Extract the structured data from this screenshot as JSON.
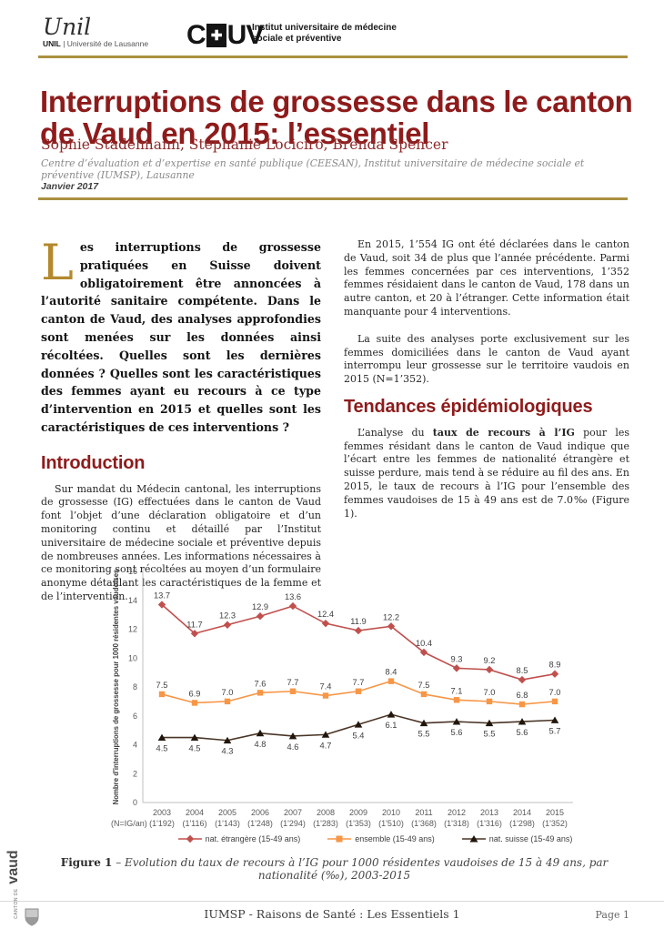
{
  "header": {
    "unil_script": "Unil",
    "unil_acronym": "UNIL",
    "unil_sub": " | Université de Lausanne",
    "chuv_c": "C",
    "chuv_cross": "✚",
    "chuv_uv": "UV",
    "institute_line1": "Institut universitaire de médecine",
    "institute_line2": "sociale et préventive"
  },
  "title": "Interruptions de grossesse dans le canton de Vaud en 2015: l’essentiel",
  "authors": "Sophie Stadelmann, Stéphanie Lociciro, Brenda Spencer",
  "affiliation": "Centre d’évaluation et d’expertise en santé publique (CEESAN), Institut universitaire de médecine sociale et préventive (IUMSP), Lausanne",
  "date": "Janvier 2017",
  "lead": {
    "dropcap": "L",
    "text": "es interruptions de grossesse pratiquées en Suisse doivent obligatoirement être annoncées à l’autorité sanitaire compétente. Dans le canton de Vaud, des analyses approfondies sont menées sur les données ainsi récoltées. Quelles sont les dernières données ? Quelles sont les caractéristiques des femmes ayant eu recours à ce type d’intervention en 2015 et quelles sont les caractéristiques de ces interventions ?"
  },
  "sections": {
    "introduction": {
      "heading": "Introduction",
      "body": "Sur mandat du Médecin cantonal, les interruptions de grossesse (IG) effectuées dans le canton de Vaud font l’objet d’une déclaration obligatoire et d’un monitoring continu et détaillé par l’Institut universitaire de médecine sociale et préventive depuis de nombreuses années. Les informations nécessaires à ce monitoring sont récoltées au moyen d’un formulaire anonyme détaillant les caractéristiques de la femme et de l’intervention."
    },
    "right_para1": "En 2015, 1’554 IG ont été déclarées dans le canton de Vaud, soit 34 de plus que l’année précédente. Parmi les femmes concernées par ces interventions, 1’352 femmes résidaient dans le canton de Vaud, 178 dans un autre canton, et 20 à l’étranger. Cette information était manquante pour 4 interventions.",
    "right_para2": "La suite des analyses porte exclusivement sur les femmes domiciliées dans le canton de Vaud ayant interrompu leur grossesse sur le territoire vaudois en 2015 (N=1’352).",
    "tendances": {
      "heading": "Tendances épidémiologiques",
      "body_prefix": "L’analyse du ",
      "body_bold": "taux de recours à l’IG",
      "body_suffix": " pour les femmes résidant dans le canton de Vaud indique que l’écart entre les femmes de nationalité étrangère et suisse perdure, mais tend à se réduire au fil des ans. En 2015, le taux de recours à l’IG pour l’ensemble des femmes vaudoises de 15 à 49 ans est de 7.0‰ (Figure 1)."
    }
  },
  "chart_data": {
    "type": "line",
    "ylabel": "Nombre d'interruptions de grossesse pour 1000 résidentes vaudoises",
    "ylim": [
      0,
      16
    ],
    "ytick_step": 2,
    "grid": false,
    "legend_position": "bottom",
    "x_axis_note": "(N=IG/an)",
    "categories": [
      "2003",
      "2004",
      "2005",
      "2006",
      "2007",
      "2008",
      "2009",
      "2010",
      "2011",
      "2012",
      "2013",
      "2014",
      "2015"
    ],
    "n_labels": [
      "(1'192)",
      "(1'116)",
      "(1'143)",
      "(1'248)",
      "(1'294)",
      "(1'283)",
      "(1'353)",
      "(1'510)",
      "(1'368)",
      "(1'318)",
      "(1'316)",
      "(1'298)",
      "(1'352)"
    ],
    "series": [
      {
        "name": "nat. étrangère (15-49 ans)",
        "color": "#c0504d",
        "marker": "diamond",
        "values": [
          13.7,
          11.7,
          12.3,
          12.9,
          13.6,
          12.4,
          11.9,
          12.2,
          10.4,
          9.3,
          9.2,
          8.5,
          8.9
        ]
      },
      {
        "name": "ensemble (15-49 ans)",
        "color": "#f79646",
        "marker": "square",
        "values": [
          7.5,
          6.9,
          7.0,
          7.6,
          7.7,
          7.4,
          7.7,
          8.4,
          7.5,
          7.1,
          7.0,
          6.8,
          7.0
        ]
      },
      {
        "name": "nat. suisse (15-49 ans)",
        "color": "#4a3526",
        "marker": "triangle",
        "values": [
          4.5,
          4.5,
          4.3,
          4.8,
          4.6,
          4.7,
          5.4,
          6.1,
          5.5,
          5.6,
          5.5,
          5.6,
          5.7
        ]
      }
    ]
  },
  "figure_caption": {
    "label": "Figure 1",
    "dash": " – ",
    "text": "Evolution du taux de recours à l’IG pour 1000 résidentes vaudoises de 15 à 49 ans, par nationalité (‰), 2003-2015"
  },
  "footer": {
    "center": "IUMSP - Raisons de Santé : Les Essentiels 1",
    "page": "Page 1"
  },
  "vaud_logo": {
    "small_text": "CANTON DE",
    "text": "vaud"
  }
}
